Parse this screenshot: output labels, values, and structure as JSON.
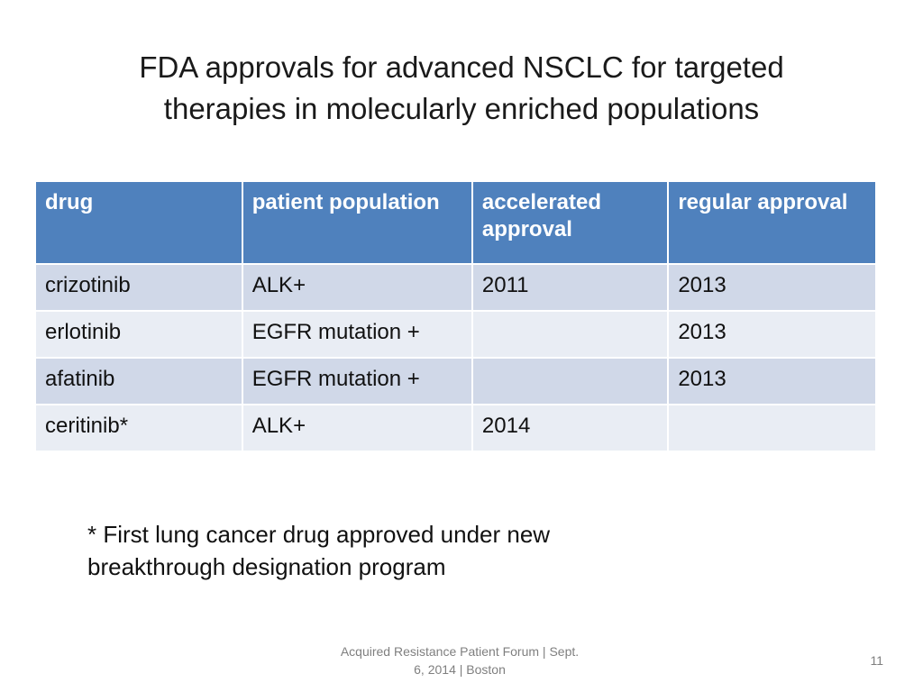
{
  "slide": {
    "title_line1": "FDA approvals for advanced NSCLC for targeted",
    "title_line2": "therapies in molecularly enriched populations"
  },
  "table": {
    "headers": [
      "drug",
      "patient population",
      "accelerated approval",
      "regular approval"
    ],
    "rows": [
      [
        "crizotinib",
        "ALK+",
        "2011",
        "2013"
      ],
      [
        "erlotinib",
        "EGFR mutation +",
        "",
        "2013"
      ],
      [
        "afatinib",
        "EGFR mutation +",
        "",
        "2013"
      ],
      [
        "ceritinib*",
        "ALK+",
        "2014",
        ""
      ]
    ]
  },
  "footnote": {
    "line1": "* First lung cancer drug approved under new",
    "line2": "breakthrough designation program"
  },
  "footer": {
    "line1": "Acquired Resistance Patient Forum | Sept.",
    "line2": "6, 2014 | Boston",
    "page_number": "11"
  },
  "colors": {
    "header_fill": "#4f81bd",
    "row_fill_dark": "#d0d8e8",
    "row_fill_light": "#e9edf4"
  }
}
